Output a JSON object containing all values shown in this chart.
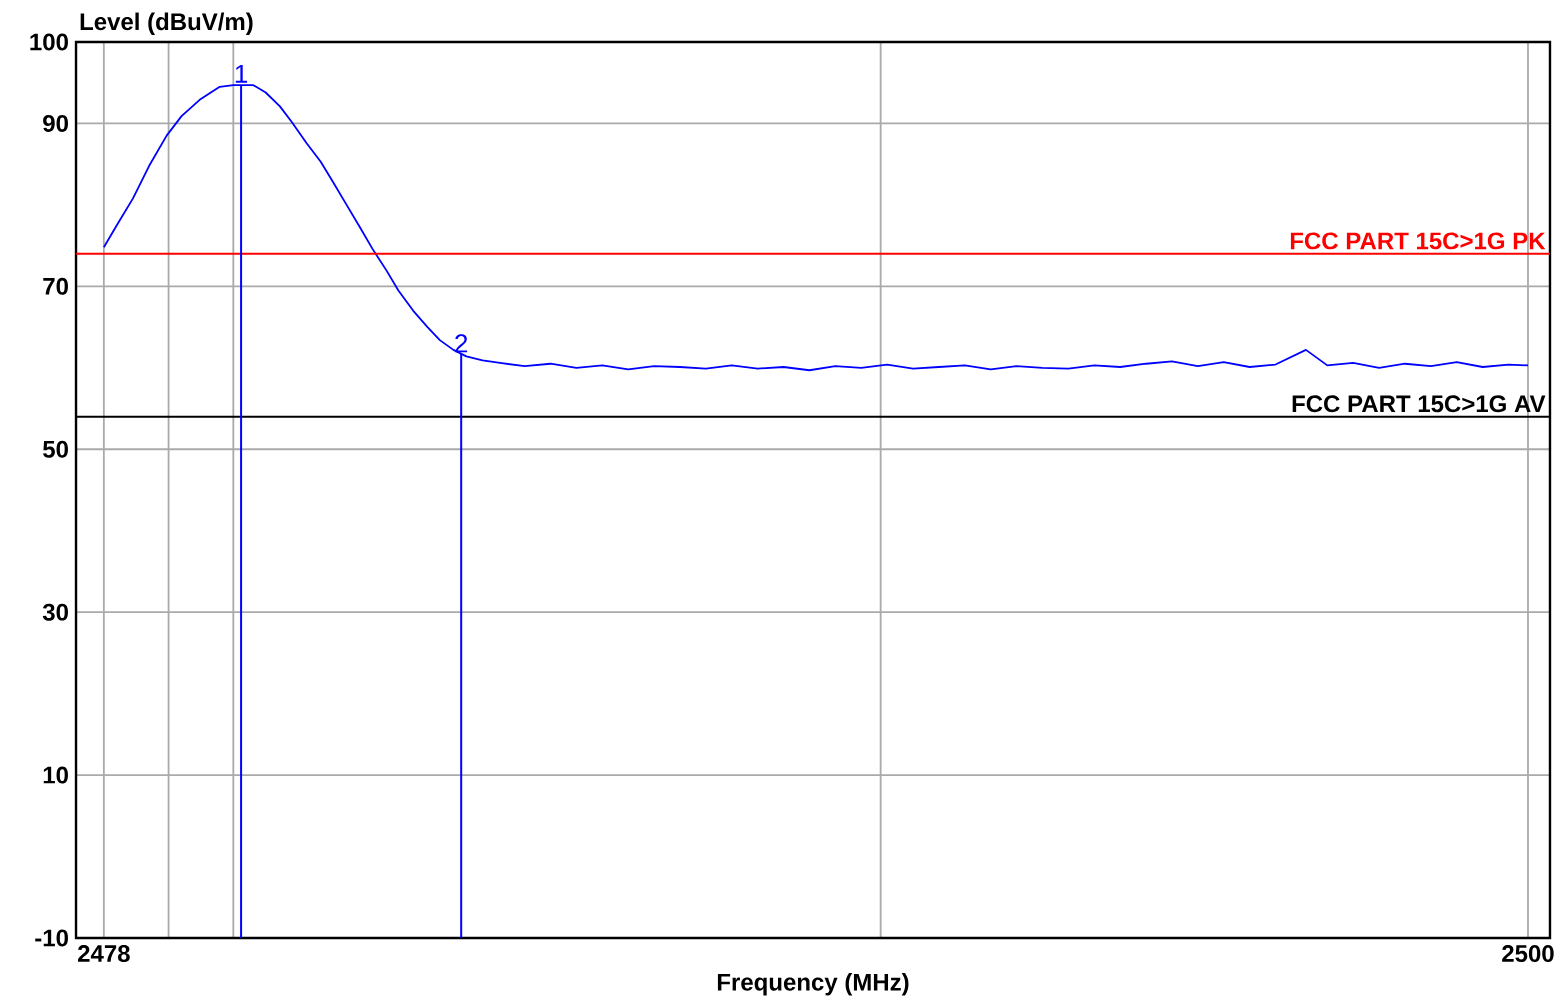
{
  "chart_data": {
    "type": "line",
    "xlabel": "Frequency (MHz)",
    "ylabel": "Level (dBuV/m)",
    "xlim": [
      2477.57,
      2500.34
    ],
    "ylim": [
      -10,
      100
    ],
    "xticks": [
      2478,
      {
        "value": 2479,
        "label": null
      },
      {
        "value": 2480,
        "label": null
      },
      {
        "value": 2490,
        "label": null
      },
      2500
    ],
    "yticks": [
      -10,
      10,
      30,
      50,
      70,
      90,
      100
    ],
    "grid": true,
    "marker": "none",
    "line_style": "solid",
    "series": [
      {
        "color": "#0000ff",
        "x": [
          2478.0,
          2478.2,
          2478.45,
          2478.7,
          2478.97,
          2479.2,
          2479.48,
          2479.79,
          2480.0,
          2480.31,
          2480.5,
          2480.72,
          2480.9,
          2481.13,
          2481.35,
          2481.54,
          2481.75,
          2481.96,
          2482.15,
          2482.37,
          2482.55,
          2482.78,
          2483.0,
          2483.19,
          2483.4,
          2483.6,
          2483.85,
          2484.12,
          2484.5,
          2484.9,
          2485.3,
          2485.7,
          2486.1,
          2486.5,
          2486.9,
          2487.3,
          2487.7,
          2488.1,
          2488.5,
          2488.9,
          2489.3,
          2489.7,
          2490.1,
          2490.5,
          2490.9,
          2491.3,
          2491.7,
          2492.1,
          2492.5,
          2492.9,
          2493.3,
          2493.7,
          2494.1,
          2494.5,
          2494.9,
          2495.3,
          2495.7,
          2496.1,
          2496.57,
          2496.9,
          2497.3,
          2497.7,
          2498.1,
          2498.5,
          2498.9,
          2499.3,
          2499.7,
          2500.0
        ],
        "values": [
          74.8,
          77.5,
          80.8,
          84.8,
          88.5,
          90.9,
          92.9,
          94.5,
          94.7,
          94.7,
          93.8,
          92.1,
          90.2,
          87.6,
          85.3,
          82.8,
          80.0,
          77.2,
          74.6,
          71.9,
          69.5,
          67.0,
          65.0,
          63.4,
          62.2,
          61.4,
          60.9,
          60.6,
          60.2,
          60.5,
          60.0,
          60.3,
          59.8,
          60.2,
          60.1,
          59.9,
          60.3,
          59.9,
          60.1,
          59.7,
          60.2,
          60.0,
          60.4,
          59.9,
          60.1,
          60.3,
          59.8,
          60.2,
          60.0,
          59.9,
          60.3,
          60.1,
          60.5,
          60.8,
          60.2,
          60.7,
          60.1,
          60.4,
          62.2,
          60.3,
          60.6,
          60.0,
          60.5,
          60.2,
          60.7,
          60.1,
          60.4,
          60.3
        ]
      }
    ],
    "ref_lines": [
      {
        "axis": "y",
        "value": 74,
        "label": "FCC PART 15C>1G PK",
        "color": "#ff0000"
      },
      {
        "axis": "y",
        "value": 54,
        "label": "FCC PART 15C>1G AV",
        "color": "#000000"
      },
      {
        "axis": "x",
        "value": 2480.12,
        "color": "#0000ff"
      },
      {
        "axis": "x",
        "value": 2483.52,
        "color": "#0000ff"
      }
    ],
    "annotations": [
      {
        "text": "1",
        "x": 2480.12,
        "y": 94.7
      },
      {
        "text": "2",
        "x": 2483.52,
        "y": 61.6
      }
    ]
  }
}
